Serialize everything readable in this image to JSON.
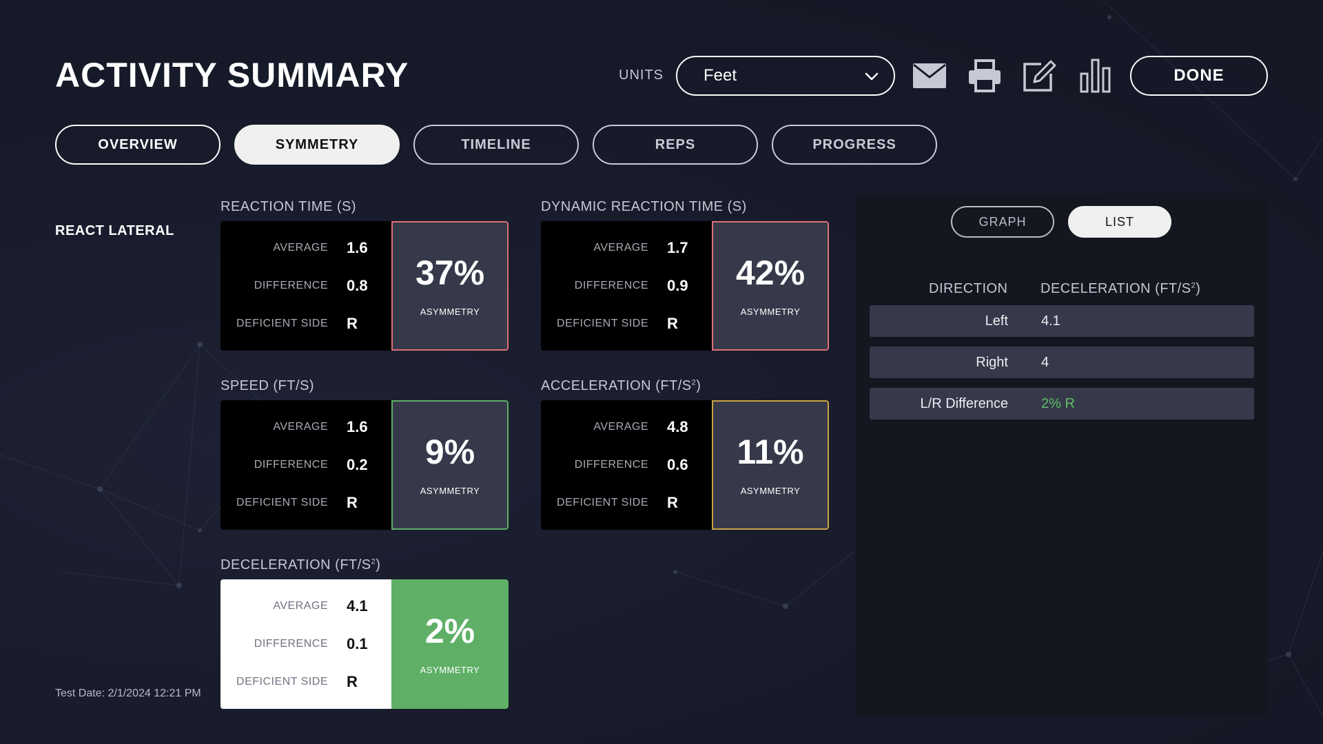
{
  "header": {
    "title": "ACTIVITY SUMMARY",
    "units_label": "UNITS",
    "units_value": "Feet",
    "done_label": "DONE"
  },
  "icons": [
    "mail-icon",
    "print-icon",
    "edit-icon",
    "bar-chart-icon",
    "chevron-down-icon"
  ],
  "tabs": [
    {
      "label": "OVERVIEW",
      "state": "outline"
    },
    {
      "label": "SYMMETRY",
      "state": "active"
    },
    {
      "label": "TIMELINE",
      "state": "dim"
    },
    {
      "label": "REPS",
      "state": "dim"
    },
    {
      "label": "PROGRESS",
      "state": "dim"
    }
  ],
  "activity_name": "REACT LATERAL",
  "test_date": "Test Date: 2/1/2024 12:21 PM",
  "stat_labels": {
    "average": "AVERAGE",
    "difference": "DIFFERENCE",
    "deficient_side": "DEFICIENT SIDE",
    "asymmetry": "ASYMMETRY"
  },
  "metrics": [
    {
      "title": "REACTION TIME (S)",
      "title_sup": "",
      "title_suffix": "",
      "average": "1.6",
      "difference": "0.8",
      "deficient_side": "R",
      "asymmetry": "37%",
      "accent": "#e07078",
      "style": "dark"
    },
    {
      "title": "DYNAMIC REACTION TIME (S)",
      "title_sup": "",
      "title_suffix": "",
      "average": "1.7",
      "difference": "0.9",
      "deficient_side": "R",
      "asymmetry": "42%",
      "accent": "#e07078",
      "style": "dark"
    },
    {
      "title": "SPEED (FT/S)",
      "title_sup": "",
      "title_suffix": "",
      "average": "1.6",
      "difference": "0.2",
      "deficient_side": "R",
      "asymmetry": "9%",
      "accent": "#5fb066",
      "style": "dark"
    },
    {
      "title": "ACCELERATION (FT/S",
      "title_sup": "2",
      "title_suffix": ")",
      "average": "4.8",
      "difference": "0.6",
      "deficient_side": "R",
      "asymmetry": "11%",
      "accent": "#c9a545",
      "style": "dark"
    },
    {
      "title": "DECELERATION (FT/S",
      "title_sup": "2",
      "title_suffix": ")",
      "average": "4.1",
      "difference": "0.1",
      "deficient_side": "R",
      "asymmetry": "2%",
      "accent": "#5fb066",
      "style": "light"
    }
  ],
  "panel": {
    "view_buttons": [
      {
        "label": "GRAPH",
        "active": false
      },
      {
        "label": "LIST",
        "active": true
      }
    ],
    "columns": {
      "direction": "DIRECTION",
      "value_main": "DECELERATION (FT/S",
      "value_sup": "2",
      "value_suffix": ")"
    },
    "rows": [
      {
        "direction": "Left",
        "value": "4.1",
        "highlight": false
      },
      {
        "direction": "Right",
        "value": "4",
        "highlight": false
      },
      {
        "direction": "L/R Difference",
        "value": "2% R",
        "highlight": true
      }
    ],
    "highlight_color": "#5fc066"
  }
}
